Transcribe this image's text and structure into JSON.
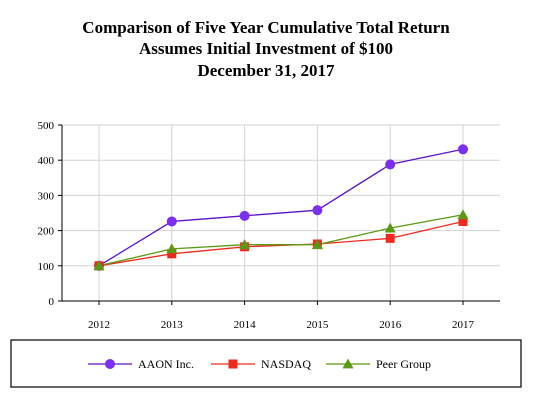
{
  "chart_data": {
    "type": "line",
    "title_lines": [
      "Comparison of Five Year Cumulative Total Return",
      "Assumes Initial Investment of $100",
      "December 31, 2017"
    ],
    "xlabel": "",
    "ylabel": "",
    "categories": [
      "2012",
      "2013",
      "2014",
      "2015",
      "2016",
      "2017"
    ],
    "ylim": [
      0,
      500
    ],
    "yticks": [
      0,
      100,
      200,
      300,
      400,
      500
    ],
    "grid": true,
    "legend_placement": "bottom",
    "series": [
      {
        "name": "AAON Inc.",
        "values": [
          100,
          226,
          242,
          258,
          388,
          431
        ],
        "color": "#7b2ff0",
        "line_color": "#5b12c8",
        "marker": "circle"
      },
      {
        "name": "NASDAQ",
        "values": [
          100,
          134,
          154,
          162,
          178,
          226
        ],
        "color": "#ee2a1e",
        "line_color": "#ee2a1e",
        "marker": "square"
      },
      {
        "name": "Peer Group",
        "values": [
          100,
          148,
          160,
          160,
          207,
          245
        ],
        "color": "#5a9a12",
        "line_color": "#5a9a12",
        "marker": "triangle"
      }
    ]
  }
}
